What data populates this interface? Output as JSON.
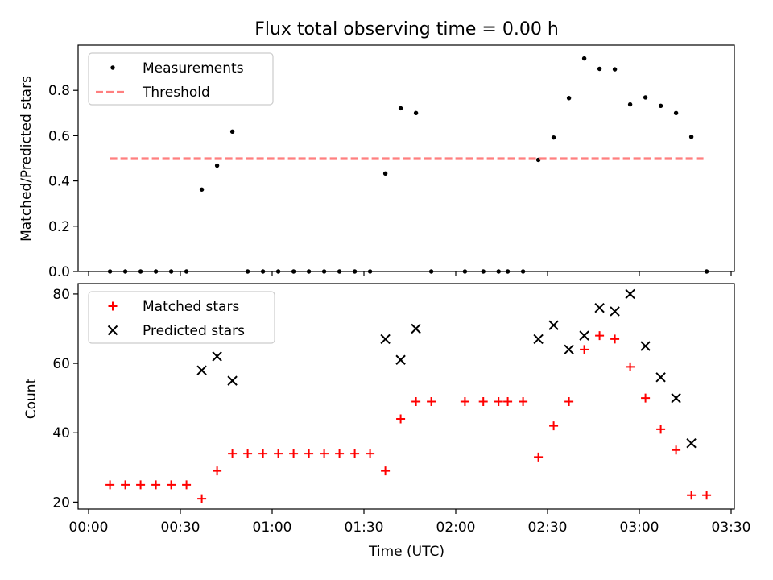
{
  "chart_data": [
    {
      "type": "scatter",
      "title": "Flux total observing time = 0.00 h",
      "xlabel": "",
      "ylabel": "Matched/Predicted stars",
      "xlim": [
        "00:00",
        "03:30"
      ],
      "ylim": [
        0,
        1.0
      ],
      "yticks": [
        0.0,
        0.2,
        0.4,
        0.6,
        0.8
      ],
      "ytick_labels": [
        "0.0",
        "0.2",
        "0.4",
        "0.6",
        "0.8"
      ],
      "legend_position": "top-left",
      "grid": false,
      "series": [
        {
          "name": "Measurements",
          "marker": "dot",
          "color": "#000000",
          "points": [
            [
              "00:07",
              0
            ],
            [
              "00:12",
              0
            ],
            [
              "00:17",
              0
            ],
            [
              "00:22",
              0
            ],
            [
              "00:27",
              0
            ],
            [
              "00:32",
              0
            ],
            [
              "00:37",
              0.362
            ],
            [
              "00:42",
              0.468
            ],
            [
              "00:47",
              0.618
            ],
            [
              "00:52",
              0
            ],
            [
              "00:57",
              0
            ],
            [
              "01:02",
              0
            ],
            [
              "01:07",
              0
            ],
            [
              "01:12",
              0
            ],
            [
              "01:17",
              0
            ],
            [
              "01:22",
              0
            ],
            [
              "01:27",
              0
            ],
            [
              "01:32",
              0
            ],
            [
              "01:37",
              0.433
            ],
            [
              "01:42",
              0.721
            ],
            [
              "01:47",
              0.7
            ],
            [
              "01:52",
              0
            ],
            [
              "02:03",
              0
            ],
            [
              "02:09",
              0
            ],
            [
              "02:14",
              0
            ],
            [
              "02:17",
              0
            ],
            [
              "02:22",
              0
            ],
            [
              "02:27",
              0.493
            ],
            [
              "02:32",
              0.592
            ],
            [
              "02:37",
              0.766
            ],
            [
              "02:42",
              0.941
            ],
            [
              "02:47",
              0.895
            ],
            [
              "02:52",
              0.893
            ],
            [
              "02:57",
              0.738
            ],
            [
              "03:02",
              0.769
            ],
            [
              "03:07",
              0.732
            ],
            [
              "03:12",
              0.7
            ],
            [
              "03:17",
              0.595
            ],
            [
              "03:22",
              0
            ]
          ]
        },
        {
          "name": "Threshold",
          "marker": "dashed-line",
          "color": "#ff7f7f",
          "points": [
            [
              "00:07",
              0.5
            ],
            [
              "03:22",
              0.5
            ]
          ]
        }
      ]
    },
    {
      "type": "scatter",
      "title": "",
      "xlabel": "Time (UTC)",
      "ylabel": "Count",
      "xlim": [
        "00:00",
        "03:30"
      ],
      "xticks": [
        "00:00",
        "00:30",
        "01:00",
        "01:30",
        "02:00",
        "02:30",
        "03:00",
        "03:30"
      ],
      "ylim": [
        18,
        83
      ],
      "yticks": [
        20,
        40,
        60,
        80
      ],
      "legend_position": "top-left",
      "grid": false,
      "series": [
        {
          "name": "Matched stars",
          "marker": "plus",
          "color": "#ff0000",
          "points": [
            [
              "00:07",
              25
            ],
            [
              "00:12",
              25
            ],
            [
              "00:17",
              25
            ],
            [
              "00:22",
              25
            ],
            [
              "00:27",
              25
            ],
            [
              "00:32",
              25
            ],
            [
              "00:37",
              21
            ],
            [
              "00:42",
              29
            ],
            [
              "00:47",
              34
            ],
            [
              "00:52",
              34
            ],
            [
              "00:57",
              34
            ],
            [
              "01:02",
              34
            ],
            [
              "01:07",
              34
            ],
            [
              "01:12",
              34
            ],
            [
              "01:17",
              34
            ],
            [
              "01:22",
              34
            ],
            [
              "01:27",
              34
            ],
            [
              "01:32",
              34
            ],
            [
              "01:37",
              29
            ],
            [
              "01:42",
              44
            ],
            [
              "01:47",
              49
            ],
            [
              "01:52",
              49
            ],
            [
              "02:03",
              49
            ],
            [
              "02:09",
              49
            ],
            [
              "02:14",
              49
            ],
            [
              "02:17",
              49
            ],
            [
              "02:22",
              49
            ],
            [
              "02:27",
              33
            ],
            [
              "02:32",
              42
            ],
            [
              "02:37",
              49
            ],
            [
              "02:42",
              64
            ],
            [
              "02:47",
              68
            ],
            [
              "02:52",
              67
            ],
            [
              "02:57",
              59
            ],
            [
              "03:02",
              50
            ],
            [
              "03:07",
              41
            ],
            [
              "03:12",
              35
            ],
            [
              "03:17",
              22
            ],
            [
              "03:22",
              22
            ]
          ]
        },
        {
          "name": "Predicted stars",
          "marker": "x",
          "color": "#000000",
          "points": [
            [
              "00:37",
              58
            ],
            [
              "00:42",
              62
            ],
            [
              "00:47",
              55
            ],
            [
              "01:37",
              67
            ],
            [
              "01:42",
              61
            ],
            [
              "01:47",
              70
            ],
            [
              "02:27",
              67
            ],
            [
              "02:32",
              71
            ],
            [
              "02:37",
              64
            ],
            [
              "02:42",
              68
            ],
            [
              "02:47",
              76
            ],
            [
              "02:52",
              75
            ],
            [
              "02:57",
              80
            ],
            [
              "03:02",
              65
            ],
            [
              "03:07",
              56
            ],
            [
              "03:12",
              50
            ],
            [
              "03:17",
              37
            ]
          ]
        }
      ]
    }
  ]
}
